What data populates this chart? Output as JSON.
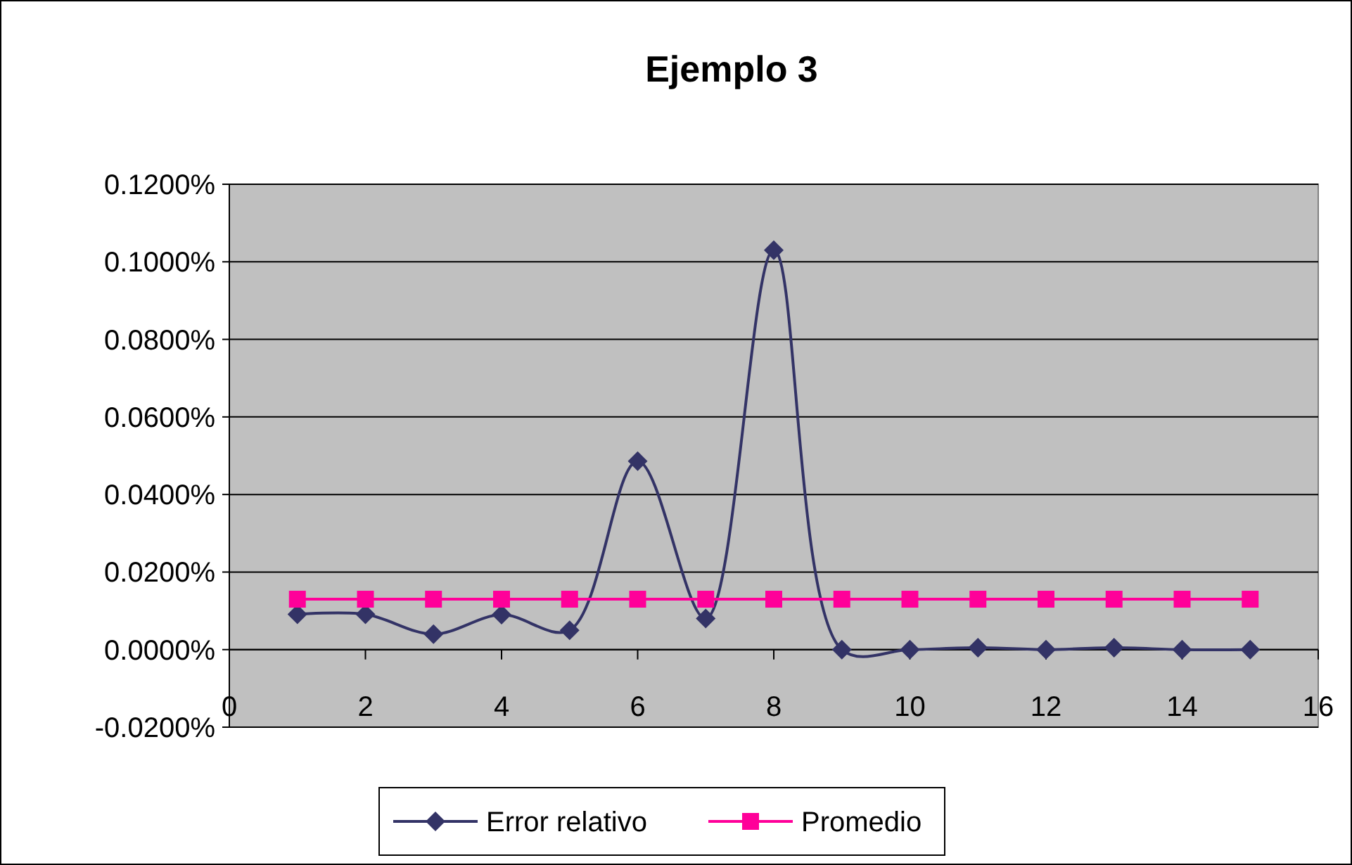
{
  "chart_data": {
    "type": "line",
    "title": "Ejemplo 3",
    "x": [
      1,
      2,
      3,
      4,
      5,
      6,
      7,
      8,
      9,
      10,
      11,
      12,
      13,
      14,
      15
    ],
    "series": [
      {
        "name": "Error relativo",
        "color": "#333366",
        "marker": "diamond",
        "values": [
          0.0091,
          0.0091,
          0.004,
          0.009,
          0.005,
          0.0486,
          0.008,
          0.103,
          0,
          0,
          0.0005,
          0,
          0.0005,
          0,
          0
        ]
      },
      {
        "name": "Promedio",
        "color": "#ff0099",
        "marker": "square",
        "values": [
          0.013,
          0.013,
          0.013,
          0.013,
          0.013,
          0.013,
          0.013,
          0.013,
          0.013,
          0.013,
          0.013,
          0.013,
          0.013,
          0.013,
          0.013
        ]
      }
    ],
    "xlim": [
      0,
      16
    ],
    "xticks": [
      0,
      2,
      4,
      6,
      8,
      10,
      12,
      14,
      16
    ],
    "ylim": [
      -0.02,
      0.12
    ],
    "yticks": [
      {
        "value": -0.02,
        "label": "-0.0200%"
      },
      {
        "value": 0,
        "label": "0.0000%"
      },
      {
        "value": 0.02,
        "label": "0.0200%"
      },
      {
        "value": 0.04,
        "label": "0.0400%"
      },
      {
        "value": 0.06,
        "label": "0.0600%"
      },
      {
        "value": 0.08,
        "label": "0.0800%"
      },
      {
        "value": 0.1,
        "label": "0.1000%"
      },
      {
        "value": 0.12,
        "label": "0.1200%"
      }
    ],
    "grid": "y",
    "legend": "bottom",
    "line_style": "solid"
  }
}
